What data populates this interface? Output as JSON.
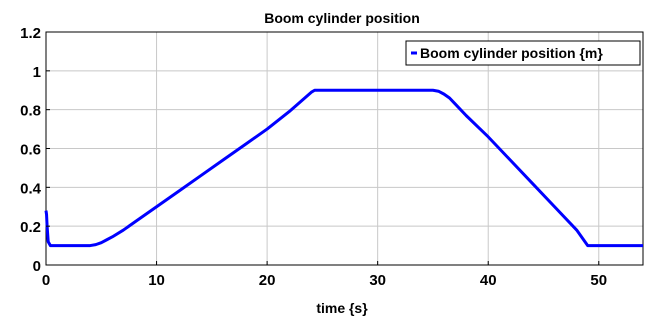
{
  "chart_data": {
    "type": "line",
    "title": "Boom cylinder position",
    "xlabel": "time {s}",
    "ylabel": "",
    "xlim": [
      0,
      54
    ],
    "ylim": [
      0,
      1.2
    ],
    "xticks": [
      0,
      10,
      20,
      30,
      40,
      50
    ],
    "yticks": [
      0,
      0.2,
      0.4,
      0.6,
      0.8,
      1,
      1.2
    ],
    "xtick_labels": [
      "0",
      "10",
      "20",
      "30",
      "40",
      "50"
    ],
    "ytick_labels": [
      "0",
      "0.2",
      "0.4",
      "0.6",
      "0.8",
      "1",
      "1.2"
    ],
    "grid": true,
    "legend_position": "top-right",
    "series": [
      {
        "name": "Boom cylinder position {m}",
        "color": "#0000ff",
        "x": [
          0,
          0.05,
          0.1,
          0.2,
          0.4,
          1,
          2,
          3,
          4,
          4.5,
          5,
          5.5,
          6,
          7,
          8,
          10,
          12,
          14,
          16,
          18,
          20,
          22,
          24,
          24.3,
          25,
          28,
          30,
          32,
          34,
          35,
          35.5,
          36,
          36.5,
          37,
          38,
          40,
          42,
          44,
          46,
          48,
          49,
          50,
          52,
          54
        ],
        "y": [
          0.28,
          0.26,
          0.2,
          0.12,
          0.1,
          0.1,
          0.1,
          0.1,
          0.1,
          0.105,
          0.115,
          0.13,
          0.145,
          0.18,
          0.22,
          0.3,
          0.38,
          0.46,
          0.54,
          0.62,
          0.7,
          0.79,
          0.89,
          0.9,
          0.9,
          0.9,
          0.9,
          0.9,
          0.9,
          0.9,
          0.895,
          0.88,
          0.86,
          0.83,
          0.77,
          0.66,
          0.54,
          0.42,
          0.3,
          0.18,
          0.1,
          0.1,
          0.1,
          0.1
        ]
      }
    ]
  }
}
